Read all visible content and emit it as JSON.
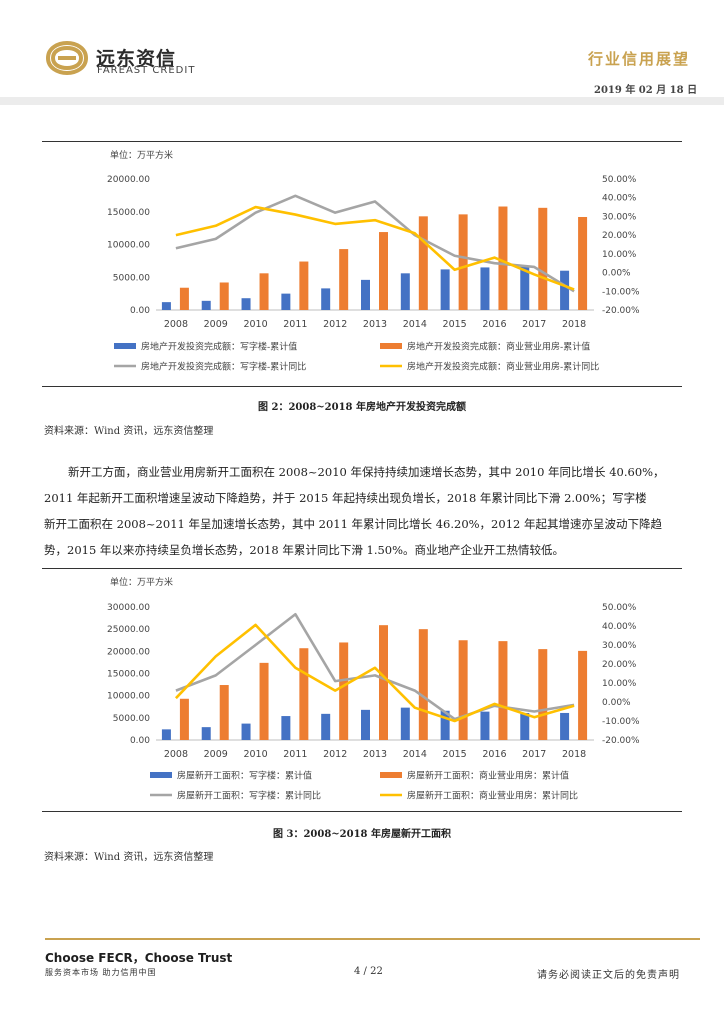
{
  "header": {
    "logo_cn": "远东资信",
    "logo_en": "FAREAST CREDIT",
    "title": "行业信用展望",
    "date": "2019 年 02 月 18 日"
  },
  "figure2": {
    "unit": "单位：万平方米",
    "caption": "图 2：2008~2018 年房地产开发投资完成额",
    "source": "资料来源：Wind 资讯，远东资信整理"
  },
  "figure3": {
    "unit": "单位：万平方米",
    "caption": "图 3：2008~2018 年房屋新开工面积",
    "source": "资料来源：Wind 资讯，远东资信整理"
  },
  "paragraph": {
    "line1": "新开工方面，商业营业用房新开工面积在 2008~2010 年保持持续加速增长态势，其中 2010 年同比增长 40.60%，",
    "line2": "2011 年起新开工面积增速呈波动下降趋势，并于 2015 年起持续出现负增长，2018 年累计同比下滑 2.00%；写字楼",
    "line3": "新开工面积在 2008~2011 年呈加速增长态势，其中 2011 年累计同比增长 46.20%，2012 年起其增速亦呈波动下降趋",
    "line4": "势，2015 年以来亦持续呈负增长态势，2018 年累计同比下滑 1.50%。商业地产企业开工热情较低。"
  },
  "chart_data": [
    {
      "type": "bar",
      "categories": [
        "2008",
        "2009",
        "2010",
        "2011",
        "2012",
        "2013",
        "2014",
        "2015",
        "2016",
        "2017",
        "2018"
      ],
      "ylim": [
        0,
        20000
      ],
      "yticks": [
        "0.00",
        "5000.00",
        "10000.00",
        "15000.00",
        "20000.00"
      ],
      "y2lim": [
        -20,
        50
      ],
      "y2ticks": [
        "-20.00%",
        "-10.00%",
        "0.00%",
        "10.00%",
        "20.00%",
        "30.00%",
        "40.00%",
        "50.00%"
      ],
      "series": [
        {
          "name": "房地产开发投资完成额：写字楼-累计值",
          "axis": "left",
          "kind": "bar",
          "color": "#4472c4",
          "values": [
            1200,
            1400,
            1800,
            2500,
            3300,
            4600,
            5600,
            6200,
            6500,
            6800,
            6000
          ]
        },
        {
          "name": "房地产开发投资完成额：商业营业用房-累计值",
          "axis": "left",
          "kind": "bar",
          "color": "#ed7d31",
          "values": [
            3400,
            4200,
            5600,
            7400,
            9300,
            11900,
            14300,
            14600,
            15800,
            15600,
            14200
          ]
        },
        {
          "name": "房地产开发投资完成额：写字楼-累计同比",
          "axis": "right",
          "kind": "line",
          "color": "#a5a5a5",
          "values": [
            13,
            18,
            32,
            41,
            32,
            38,
            20,
            9,
            5,
            3,
            -10
          ]
        },
        {
          "name": "房地产开发投资完成额：商业营业用房-累计同比",
          "axis": "right",
          "kind": "line",
          "color": "#ffc000",
          "values": [
            20,
            25,
            35,
            31,
            26,
            28,
            21,
            1.5,
            8,
            -1,
            -9
          ]
        }
      ]
    },
    {
      "type": "bar",
      "categories": [
        "2008",
        "2009",
        "2010",
        "2011",
        "2012",
        "2013",
        "2014",
        "2015",
        "2016",
        "2017",
        "2018"
      ],
      "ylim": [
        0,
        30000
      ],
      "yticks": [
        "0.00",
        "5000.00",
        "10000.00",
        "15000.00",
        "20000.00",
        "25000.00",
        "30000.00"
      ],
      "y2lim": [
        -20,
        50
      ],
      "y2ticks": [
        "-20.00%",
        "-10.00%",
        "0.00%",
        "10.00%",
        "20.00%",
        "30.00%",
        "40.00%",
        "50.00%"
      ],
      "series": [
        {
          "name": "房屋新开工面积：写字楼：累计值",
          "axis": "left",
          "kind": "bar",
          "color": "#4472c4",
          "values": [
            2400,
            2900,
            3700,
            5400,
            5900,
            6800,
            7300,
            6600,
            6400,
            6100,
            6100
          ]
        },
        {
          "name": "房屋新开工面积：商业营业用房：累计值",
          "axis": "left",
          "kind": "bar",
          "color": "#ed7d31",
          "values": [
            9300,
            12400,
            17400,
            20700,
            22000,
            25900,
            25000,
            22500,
            22300,
            20500,
            20100
          ]
        },
        {
          "name": "房屋新开工面积：写字楼：累计同比",
          "axis": "right",
          "kind": "line",
          "color": "#a5a5a5",
          "values": [
            6,
            14,
            30,
            46.2,
            11,
            14,
            6,
            -9,
            -2,
            -5,
            -1.5
          ]
        },
        {
          "name": "房屋新开工面积：商业营业用房：累计同比",
          "axis": "right",
          "kind": "line",
          "color": "#ffc000",
          "values": [
            2,
            24,
            40.6,
            18,
            6,
            18,
            -3,
            -10,
            -1,
            -8,
            -2
          ]
        }
      ]
    }
  ],
  "footer": {
    "slogan": "Choose FECR，Choose Trust",
    "slogan_sub": "服务资本市场  助力信用中国",
    "page": "4 / 22",
    "disclaimer": "请务必阅读正文后的免责声明"
  },
  "colors": {
    "gold": "#c9a250",
    "blue": "#4472c4",
    "orange": "#ed7d31",
    "gray": "#a5a5a5",
    "yellow": "#ffc000"
  },
  "icons": {
    "logo": "fareast-credit-logo-icon"
  }
}
